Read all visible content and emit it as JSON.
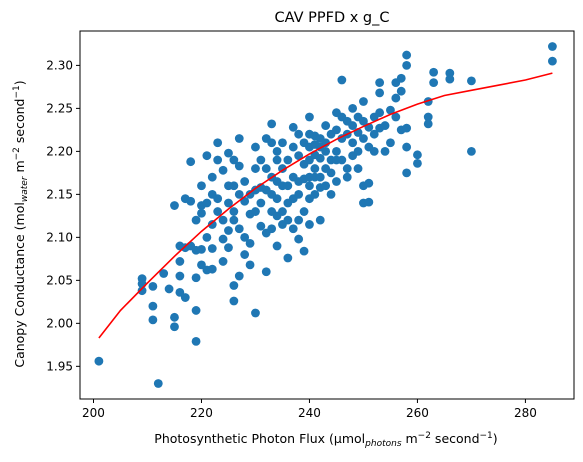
{
  "chart_data": {
    "type": "scatter",
    "title": "CAV PPFD x g_C",
    "xlabel": {
      "base": "Photosynthetic Photon Flux (µmol",
      "sub": "photons",
      "mid": " m",
      "sup": "−2",
      "end": " second",
      "sup2": "−1",
      "close": ")"
    },
    "ylabel": {
      "base": "Canopy Conductance (mol",
      "sub": "water",
      "mid": " m",
      "sup": "−2",
      "end": " second",
      "sup2": "−1",
      "close": ")"
    },
    "xlim": [
      197.5,
      289
    ],
    "ylim": [
      1.912,
      2.34
    ],
    "xticks": [
      200,
      220,
      240,
      260,
      280
    ],
    "xtick_labels": [
      "200",
      "220",
      "240",
      "260",
      "280"
    ],
    "yticks": [
      1.95,
      2.0,
      2.05,
      2.1,
      2.15,
      2.2,
      2.25,
      2.3
    ],
    "ytick_labels": [
      "1.95",
      "2.00",
      "2.05",
      "2.10",
      "2.15",
      "2.20",
      "2.25",
      "2.30"
    ],
    "grid": false,
    "series": [
      {
        "kind": "scatter",
        "color": "#1f77b4",
        "points": [
          [
            201,
            1.956
          ],
          [
            209,
            2.052
          ],
          [
            209,
            2.046
          ],
          [
            209,
            2.038
          ],
          [
            211,
            2.043
          ],
          [
            211,
            2.02
          ],
          [
            211,
            2.004
          ],
          [
            212,
            1.93
          ],
          [
            213,
            2.058
          ],
          [
            214,
            2.04
          ],
          [
            215,
            2.137
          ],
          [
            215,
            2.007
          ],
          [
            215,
            1.996
          ],
          [
            216,
            2.09
          ],
          [
            216,
            2.072
          ],
          [
            216,
            2.055
          ],
          [
            216,
            2.036
          ],
          [
            217,
            2.145
          ],
          [
            217,
            2.088
          ],
          [
            217,
            2.03
          ],
          [
            218,
            2.188
          ],
          [
            218,
            2.142
          ],
          [
            218,
            2.09
          ],
          [
            219,
            2.12
          ],
          [
            219,
            2.085
          ],
          [
            219,
            2.053
          ],
          [
            219,
            2.015
          ],
          [
            219,
            1.979
          ],
          [
            220,
            2.16
          ],
          [
            220,
            2.137
          ],
          [
            220,
            2.128
          ],
          [
            220,
            2.086
          ],
          [
            220,
            2.068
          ],
          [
            221,
            2.195
          ],
          [
            221,
            2.14
          ],
          [
            221,
            2.1
          ],
          [
            221,
            2.062
          ],
          [
            222,
            2.17
          ],
          [
            222,
            2.15
          ],
          [
            222,
            2.115
          ],
          [
            222,
            2.087
          ],
          [
            222,
            2.063
          ],
          [
            223,
            2.21
          ],
          [
            223,
            2.19
          ],
          [
            223,
            2.145
          ],
          [
            223,
            2.13
          ],
          [
            224,
            2.178
          ],
          [
            224,
            2.12
          ],
          [
            224,
            2.098
          ],
          [
            224,
            2.072
          ],
          [
            225,
            2.198
          ],
          [
            225,
            2.16
          ],
          [
            225,
            2.14
          ],
          [
            225,
            2.108
          ],
          [
            225,
            2.088
          ],
          [
            226,
            2.19
          ],
          [
            226,
            2.16
          ],
          [
            226,
            2.13
          ],
          [
            226,
            2.12
          ],
          [
            226,
            2.044
          ],
          [
            226,
            2.026
          ],
          [
            227,
            2.215
          ],
          [
            227,
            2.183
          ],
          [
            227,
            2.15
          ],
          [
            227,
            2.11
          ],
          [
            227,
            2.055
          ],
          [
            228,
            2.165
          ],
          [
            228,
            2.142
          ],
          [
            228,
            2.1
          ],
          [
            228,
            2.08
          ],
          [
            229,
            2.15
          ],
          [
            229,
            2.127
          ],
          [
            229,
            2.093
          ],
          [
            229,
            2.068
          ],
          [
            230,
            2.205
          ],
          [
            230,
            2.18
          ],
          [
            230,
            2.155
          ],
          [
            230,
            2.13
          ],
          [
            230,
            2.012
          ],
          [
            231,
            2.19
          ],
          [
            231,
            2.158
          ],
          [
            231,
            2.14
          ],
          [
            231,
            2.113
          ],
          [
            232,
            2.215
          ],
          [
            232,
            2.18
          ],
          [
            232,
            2.155
          ],
          [
            232,
            2.105
          ],
          [
            232,
            2.06
          ],
          [
            233,
            2.232
          ],
          [
            233,
            2.21
          ],
          [
            233,
            2.17
          ],
          [
            233,
            2.15
          ],
          [
            233,
            2.13
          ],
          [
            233,
            2.11
          ],
          [
            234,
            2.2
          ],
          [
            234,
            2.19
          ],
          [
            234,
            2.165
          ],
          [
            234,
            2.145
          ],
          [
            234,
            2.125
          ],
          [
            234,
            2.09
          ],
          [
            235,
            2.21
          ],
          [
            235,
            2.18
          ],
          [
            235,
            2.16
          ],
          [
            235,
            2.13
          ],
          [
            235,
            2.115
          ],
          [
            236,
            2.19
          ],
          [
            236,
            2.16
          ],
          [
            236,
            2.14
          ],
          [
            236,
            2.12
          ],
          [
            236,
            2.076
          ],
          [
            237,
            2.228
          ],
          [
            237,
            2.205
          ],
          [
            237,
            2.17
          ],
          [
            237,
            2.145
          ],
          [
            237,
            2.11
          ],
          [
            238,
            2.22
          ],
          [
            238,
            2.195
          ],
          [
            238,
            2.165
          ],
          [
            238,
            2.15
          ],
          [
            238,
            2.12
          ],
          [
            238,
            2.098
          ],
          [
            239,
            2.21
          ],
          [
            239,
            2.185
          ],
          [
            239,
            2.168
          ],
          [
            239,
            2.13
          ],
          [
            239,
            2.084
          ],
          [
            240,
            2.24
          ],
          [
            240,
            2.22
          ],
          [
            240,
            2.205
          ],
          [
            240,
            2.19
          ],
          [
            240,
            2.17
          ],
          [
            240,
            2.16
          ],
          [
            240,
            2.145
          ],
          [
            240,
            2.115
          ],
          [
            241,
            2.218
          ],
          [
            241,
            2.208
          ],
          [
            241,
            2.196
          ],
          [
            241,
            2.18
          ],
          [
            241,
            2.17
          ],
          [
            241,
            2.15
          ],
          [
            242,
            2.215
          ],
          [
            242,
            2.205
          ],
          [
            242,
            2.192
          ],
          [
            242,
            2.17
          ],
          [
            242,
            2.158
          ],
          [
            242,
            2.12
          ],
          [
            243,
            2.23
          ],
          [
            243,
            2.21
          ],
          [
            243,
            2.2
          ],
          [
            243,
            2.18
          ],
          [
            243,
            2.16
          ],
          [
            244,
            2.22
          ],
          [
            244,
            2.19
          ],
          [
            244,
            2.175
          ],
          [
            244,
            2.15
          ],
          [
            245,
            2.245
          ],
          [
            245,
            2.225
          ],
          [
            245,
            2.2
          ],
          [
            245,
            2.19
          ],
          [
            245,
            2.165
          ],
          [
            246,
            2.283
          ],
          [
            246,
            2.24
          ],
          [
            246,
            2.215
          ],
          [
            246,
            2.19
          ],
          [
            247,
            2.235
          ],
          [
            247,
            2.22
          ],
          [
            247,
            2.18
          ],
          [
            247,
            2.17
          ],
          [
            248,
            2.25
          ],
          [
            248,
            2.23
          ],
          [
            248,
            2.21
          ],
          [
            248,
            2.195
          ],
          [
            249,
            2.24
          ],
          [
            249,
            2.222
          ],
          [
            249,
            2.2
          ],
          [
            249,
            2.18
          ],
          [
            250,
            2.258
          ],
          [
            250,
            2.235
          ],
          [
            250,
            2.215
          ],
          [
            250,
            2.16
          ],
          [
            250,
            2.14
          ],
          [
            251,
            2.228
          ],
          [
            251,
            2.205
          ],
          [
            251,
            2.163
          ],
          [
            251,
            2.141
          ],
          [
            252,
            2.24
          ],
          [
            252,
            2.22
          ],
          [
            252,
            2.2
          ],
          [
            253,
            2.28
          ],
          [
            253,
            2.268
          ],
          [
            253,
            2.245
          ],
          [
            253,
            2.227
          ],
          [
            254,
            2.23
          ],
          [
            254,
            2.2
          ],
          [
            255,
            2.248
          ],
          [
            255,
            2.21
          ],
          [
            256,
            2.28
          ],
          [
            256,
            2.262
          ],
          [
            256,
            2.24
          ],
          [
            257,
            2.285
          ],
          [
            257,
            2.27
          ],
          [
            257,
            2.225
          ],
          [
            258,
            2.312
          ],
          [
            258,
            2.3
          ],
          [
            258,
            2.227
          ],
          [
            258,
            2.205
          ],
          [
            258,
            2.175
          ],
          [
            260,
            2.196
          ],
          [
            260,
            2.186
          ],
          [
            262,
            2.258
          ],
          [
            262,
            2.24
          ],
          [
            262,
            2.232
          ],
          [
            263,
            2.292
          ],
          [
            263,
            2.28
          ],
          [
            266,
            2.291
          ],
          [
            266,
            2.284
          ],
          [
            270,
            2.282
          ],
          [
            270,
            2.2
          ],
          [
            285,
            2.322
          ],
          [
            285,
            2.305
          ]
        ]
      },
      {
        "kind": "line",
        "color": "#ff0000",
        "points": [
          [
            201,
            1.983
          ],
          [
            205,
            2.015
          ],
          [
            210,
            2.047
          ],
          [
            215,
            2.078
          ],
          [
            220,
            2.107
          ],
          [
            225,
            2.133
          ],
          [
            230,
            2.157
          ],
          [
            235,
            2.178
          ],
          [
            240,
            2.197
          ],
          [
            245,
            2.214
          ],
          [
            250,
            2.229
          ],
          [
            255,
            2.243
          ],
          [
            260,
            2.255
          ],
          [
            265,
            2.265
          ],
          [
            270,
            2.271
          ],
          [
            275,
            2.277
          ],
          [
            280,
            2.283
          ],
          [
            285,
            2.291
          ]
        ]
      }
    ]
  }
}
